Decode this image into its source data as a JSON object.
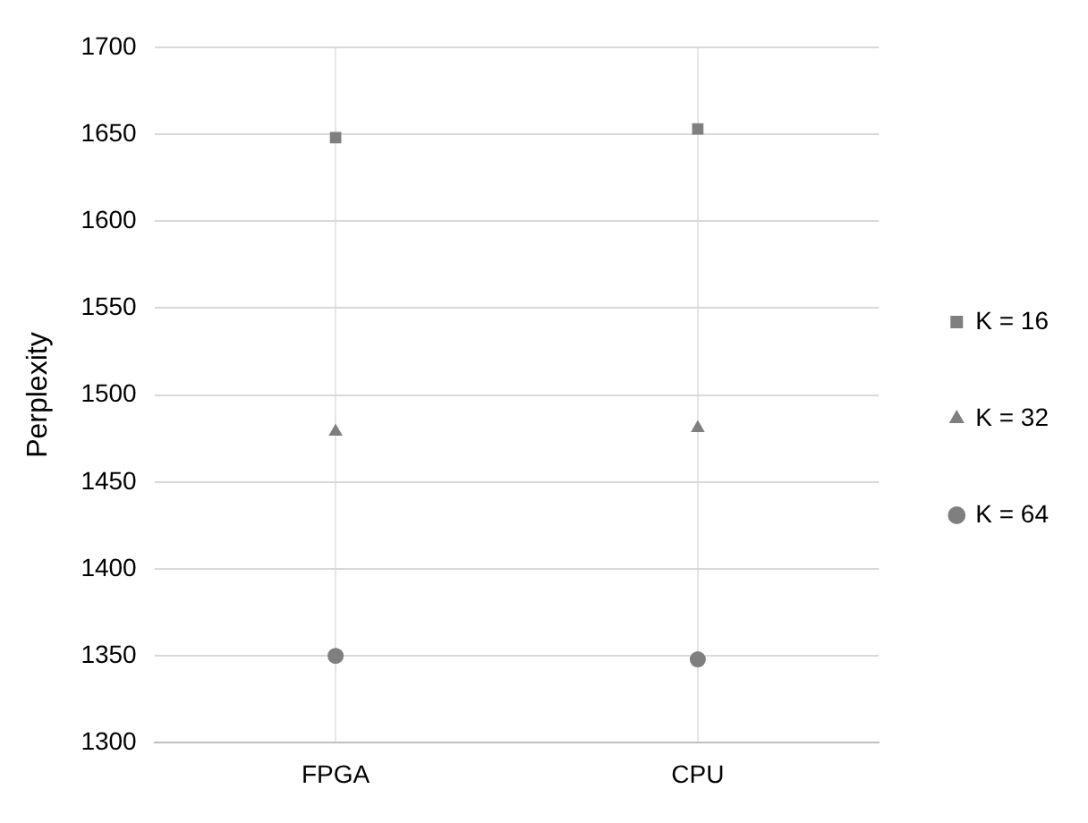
{
  "chart_data": {
    "type": "scatter",
    "ylabel": "Perplexity",
    "categories": [
      "FPGA",
      "CPU"
    ],
    "series": [
      {
        "name": "K = 16",
        "color": "#7f7f7f",
        "marker": "square",
        "values": [
          1648,
          1653
        ]
      },
      {
        "name": "K = 32",
        "color": "#7f7f7f",
        "marker": "triangle",
        "values": [
          1479,
          1481
        ]
      },
      {
        "name": "K = 64",
        "color": "#7f7f7f",
        "marker": "circle",
        "values": [
          1350,
          1348
        ]
      }
    ],
    "ylim": [
      1300,
      1700
    ],
    "yticks": [
      1300,
      1350,
      1400,
      1450,
      1500,
      1550,
      1600,
      1650,
      1700
    ],
    "grid": true,
    "legend": "right"
  }
}
